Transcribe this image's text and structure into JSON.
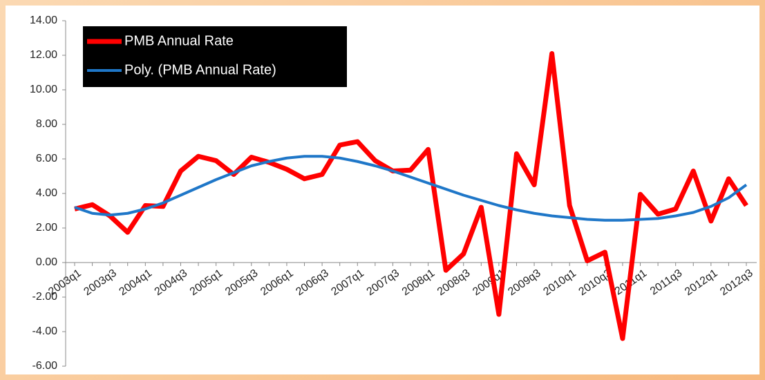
{
  "chart_data": {
    "type": "line",
    "categories": [
      "2003q1",
      null,
      "2003q3",
      null,
      "2004q1",
      null,
      "2004q3",
      null,
      "2005q1",
      null,
      "2005q3",
      null,
      "2006q1",
      null,
      "2006q3",
      null,
      "2007q1",
      null,
      "2007q3",
      null,
      "2008q1",
      null,
      "2008q3",
      null,
      "2009q1",
      null,
      "2009q3",
      null,
      "2010q1",
      null,
      "2010q3",
      null,
      "2011q1",
      null,
      "2011q3",
      null,
      "2012q1",
      null,
      "2012q3"
    ],
    "series": [
      {
        "name": "PMB Annual Rate",
        "color": "#ff0000",
        "values": [
          3.1,
          3.35,
          2.7,
          1.75,
          3.3,
          3.25,
          5.3,
          6.15,
          5.9,
          5.1,
          6.1,
          5.8,
          5.4,
          4.85,
          5.1,
          6.8,
          7.0,
          5.9,
          5.3,
          5.35,
          6.55,
          -0.45,
          0.5,
          3.2,
          -3.0,
          6.3,
          4.5,
          12.1,
          3.3,
          0.1,
          0.6,
          -4.4,
          3.95,
          2.8,
          3.1,
          5.3,
          2.4,
          4.85,
          3.3
        ]
      },
      {
        "name": "Poly. (PMB Annual Rate)",
        "color": "#1f77c8",
        "values": [
          3.2,
          2.85,
          2.75,
          2.85,
          3.1,
          3.45,
          3.9,
          4.35,
          4.8,
          5.2,
          5.6,
          5.85,
          6.05,
          6.15,
          6.15,
          6.05,
          5.85,
          5.6,
          5.3,
          4.95,
          4.6,
          4.25,
          3.9,
          3.6,
          3.3,
          3.05,
          2.85,
          2.7,
          2.6,
          2.5,
          2.45,
          2.45,
          2.5,
          2.55,
          2.7,
          2.9,
          3.25,
          3.75,
          4.5
        ]
      }
    ],
    "ylim": [
      -6,
      14
    ],
    "yticks": [
      {
        "value": -6,
        "label": "-6.00"
      },
      {
        "value": -4,
        "label": "-4.00"
      },
      {
        "value": -2,
        "label": "-2.00"
      },
      {
        "value": 0,
        "label": "0.00"
      },
      {
        "value": 2,
        "label": "2.00"
      },
      {
        "value": 4,
        "label": "4.00"
      },
      {
        "value": 6,
        "label": "6.00"
      },
      {
        "value": 8,
        "label": "8.00"
      },
      {
        "value": 10,
        "label": "10.00"
      },
      {
        "value": 12,
        "label": "12.00"
      },
      {
        "value": 14,
        "label": "14.00"
      }
    ],
    "legend": "upper left",
    "grid": false
  }
}
